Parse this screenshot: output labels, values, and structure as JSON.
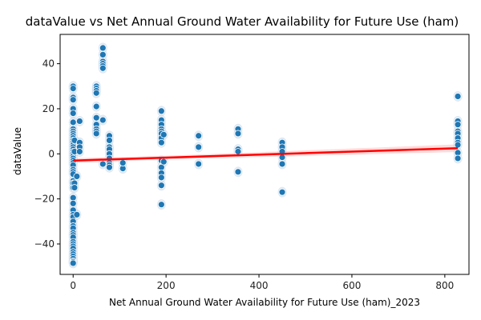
{
  "chart_data": {
    "type": "scatter",
    "title": "dataValue vs Net Annual Ground Water Availability for Future Use (ham)",
    "xlabel": "Net Annual Ground Water Availability for Future Use (ham)_2023",
    "ylabel": "dataValue",
    "xlim": [
      -28,
      852
    ],
    "ylim": [
      -53.5,
      53
    ],
    "x_ticks": [
      0,
      200,
      400,
      600,
      800
    ],
    "y_ticks": [
      -40,
      -20,
      0,
      20,
      40
    ],
    "grid": false,
    "legend": "none",
    "colors": {
      "points": "#1f77b4",
      "points_edge": "#ffffff",
      "confidence_band": "#c8d9ea",
      "regression_line": "#ff0000",
      "axes": "#000000"
    },
    "series": [
      {
        "kind": "points",
        "points": [
          [
            0,
            30
          ],
          [
            0,
            29
          ],
          [
            0,
            25
          ],
          [
            0,
            24
          ],
          [
            0,
            20
          ],
          [
            0,
            18
          ],
          [
            0,
            14
          ],
          [
            0,
            11
          ],
          [
            0,
            10
          ],
          [
            0,
            9
          ],
          [
            0,
            8
          ],
          [
            0,
            7
          ],
          [
            0,
            6
          ],
          [
            0,
            5
          ],
          [
            0,
            4
          ],
          [
            0,
            3
          ],
          [
            0,
            2
          ],
          [
            0,
            1
          ],
          [
            0,
            0
          ],
          [
            0,
            -1
          ],
          [
            0,
            -2
          ],
          [
            0,
            -3
          ],
          [
            0,
            -4
          ],
          [
            0,
            -5
          ],
          [
            0,
            -7
          ],
          [
            0,
            -8
          ],
          [
            0,
            -9
          ],
          [
            0,
            -12
          ],
          [
            0,
            -13
          ],
          [
            0,
            -15
          ],
          [
            0,
            -19.5
          ],
          [
            0,
            -22
          ],
          [
            0,
            -25
          ],
          [
            0,
            -27
          ],
          [
            0,
            -28
          ],
          [
            0,
            -30
          ],
          [
            0,
            -32
          ],
          [
            0,
            -33
          ],
          [
            0,
            -35
          ],
          [
            0,
            -36
          ],
          [
            0,
            -37
          ],
          [
            0,
            -39
          ],
          [
            0,
            -40
          ],
          [
            0,
            -41
          ],
          [
            0,
            -42
          ],
          [
            0,
            -43.5
          ],
          [
            0,
            -44.5
          ],
          [
            0,
            -45.5
          ],
          [
            0,
            -46.5
          ],
          [
            0,
            -47.5
          ],
          [
            0,
            -48
          ],
          [
            0,
            -48.5
          ],
          [
            3,
            6
          ],
          [
            3,
            1
          ],
          [
            3,
            -13
          ],
          [
            3,
            -15
          ],
          [
            8,
            -27
          ],
          [
            8,
            -10
          ],
          [
            14,
            14.5
          ],
          [
            14,
            5
          ],
          [
            14,
            3
          ],
          [
            14,
            1
          ],
          [
            50,
            30
          ],
          [
            50,
            29
          ],
          [
            50,
            28
          ],
          [
            50,
            27
          ],
          [
            50,
            21
          ],
          [
            50,
            16
          ],
          [
            50,
            13
          ],
          [
            50,
            11
          ],
          [
            50,
            10
          ],
          [
            50,
            9
          ],
          [
            64,
            47
          ],
          [
            64,
            44
          ],
          [
            64,
            41
          ],
          [
            64,
            40
          ],
          [
            64,
            39
          ],
          [
            64,
            38
          ],
          [
            64,
            15
          ],
          [
            64,
            -4.5
          ],
          [
            78,
            8
          ],
          [
            78,
            6
          ],
          [
            78,
            3
          ],
          [
            78,
            2
          ],
          [
            78,
            0
          ],
          [
            78,
            -2
          ],
          [
            78,
            -4
          ],
          [
            78,
            -5
          ],
          [
            78,
            -6
          ],
          [
            107,
            -6.5
          ],
          [
            107,
            -4
          ],
          [
            190,
            19
          ],
          [
            190,
            15
          ],
          [
            190,
            13
          ],
          [
            190,
            11
          ],
          [
            190,
            10
          ],
          [
            190,
            9
          ],
          [
            190,
            7
          ],
          [
            190,
            5
          ],
          [
            190,
            -3
          ],
          [
            190,
            -6
          ],
          [
            190,
            -8.5
          ],
          [
            190,
            -10.5
          ],
          [
            190,
            -14
          ],
          [
            190,
            -22.5
          ],
          [
            195,
            8.5
          ],
          [
            195,
            -3.5
          ],
          [
            270,
            8
          ],
          [
            270,
            3
          ],
          [
            270,
            -4.5
          ],
          [
            355,
            11
          ],
          [
            355,
            9
          ],
          [
            355,
            2
          ],
          [
            355,
            1
          ],
          [
            355,
            -8
          ],
          [
            450,
            5
          ],
          [
            450,
            3
          ],
          [
            450,
            1
          ],
          [
            450,
            -1.5
          ],
          [
            450,
            -4.5
          ],
          [
            450,
            -17
          ],
          [
            828,
            25.5
          ],
          [
            828,
            14.5
          ],
          [
            828,
            13
          ],
          [
            828,
            10
          ],
          [
            828,
            9
          ],
          [
            828,
            7
          ],
          [
            828,
            5
          ],
          [
            828,
            4
          ],
          [
            828,
            0.5
          ],
          [
            828,
            -2
          ]
        ]
      },
      {
        "kind": "regression",
        "line": {
          "x0": 0,
          "y0": -3,
          "x1": 828,
          "y1": 2.5
        }
      }
    ]
  }
}
